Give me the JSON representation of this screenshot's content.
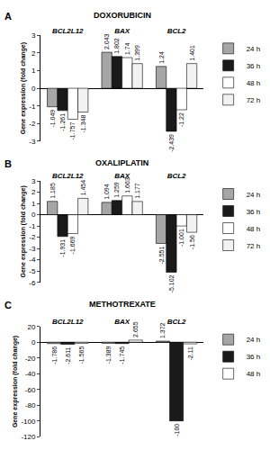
{
  "chart_data": [
    {
      "type": "bar",
      "title": "DOXORUBICIN",
      "annotations": [
        "A"
      ],
      "y_label": "Gene expression (fold change)",
      "categories": [
        "BCL2L12",
        "BAX",
        "BCL2"
      ],
      "series": [
        {
          "name": "24 h",
          "color": "#a6a6a6",
          "values": [
            -1.049,
            2.043,
            1.24
          ]
        },
        {
          "name": "36 h",
          "color": "#1a1a1a",
          "values": [
            -1.261,
            1.802,
            -2.439
          ]
        },
        {
          "name": "48 h",
          "color": "#ffffff",
          "values": [
            -1.757,
            1.74,
            -1.22
          ]
        },
        {
          "name": "72 h",
          "color": "#f2f2f2",
          "values": [
            -1.348,
            1.399,
            1.401
          ]
        }
      ],
      "ylim": [
        -3,
        3
      ],
      "yticks": [
        -3,
        -2,
        -1,
        0,
        1,
        2,
        3
      ],
      "grid": false,
      "data_labels": true,
      "legend": "right"
    },
    {
      "type": "bar",
      "title": "OXALIPLATIN",
      "annotations": [
        "B"
      ],
      "y_label": "Gene expression (fold change)",
      "categories": [
        "BCL2L12",
        "BAX",
        "BCL2"
      ],
      "series": [
        {
          "name": "24 h",
          "color": "#a6a6a6",
          "values": [
            1.185,
            1.094,
            -2.551
          ]
        },
        {
          "name": "36 h",
          "color": "#1a1a1a",
          "values": [
            -1.931,
            1.259,
            -5.102
          ]
        },
        {
          "name": "48 h",
          "color": "#ffffff",
          "values": [
            -1.669,
            1.663,
            -1.001
          ]
        },
        {
          "name": "72 h",
          "color": "#f2f2f2",
          "values": [
            1.454,
            1.177,
            -1.56
          ]
        }
      ],
      "ylim": [
        -6,
        3
      ],
      "yticks": [
        -6,
        -5,
        -4,
        -3,
        -2,
        -1,
        0,
        1,
        2,
        3
      ],
      "grid": false,
      "data_labels": true,
      "legend": "right"
    },
    {
      "type": "bar",
      "title": "METHOTREXATE",
      "annotations": [
        "C"
      ],
      "y_label": "Gene expression (fold change)",
      "categories": [
        "BCL2L12",
        "BAX",
        "BCL2"
      ],
      "series": [
        {
          "name": "24 h",
          "color": "#a6a6a6",
          "values": [
            -1.786,
            -1.389,
            1.372
          ]
        },
        {
          "name": "36 h",
          "color": "#1a1a1a",
          "values": [
            -2.611,
            -1.745,
            -100
          ]
        },
        {
          "name": "48 h",
          "color": "#ffffff",
          "values": [
            -1.565,
            2.655,
            -2.11
          ]
        }
      ],
      "ylim": [
        -120,
        20
      ],
      "yticks": [
        -120,
        -100,
        -80,
        -60,
        -40,
        -20,
        0,
        20
      ],
      "grid": false,
      "data_labels": true,
      "legend": "right"
    }
  ]
}
